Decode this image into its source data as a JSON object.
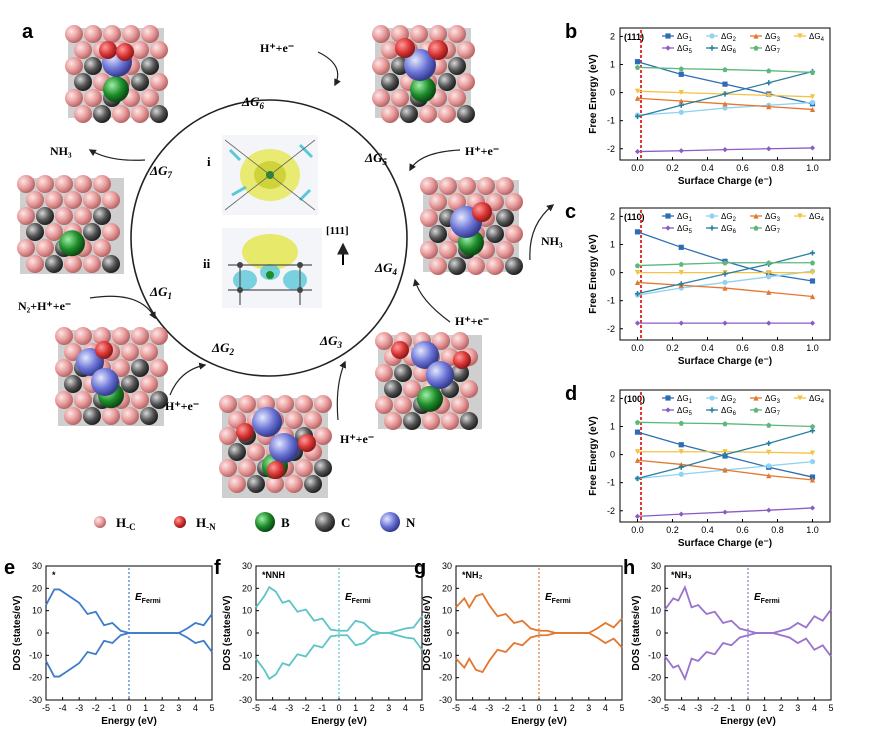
{
  "panel_a": {
    "letter": "a",
    "steps": {
      "g1": "ΔG",
      "g1_sub": "1",
      "g2": "ΔG",
      "g2_sub": "2",
      "g3": "ΔG",
      "g3_sub": "3",
      "g4": "ΔG",
      "g4_sub": "4",
      "g5": "ΔG",
      "g5_sub": "5",
      "g6": "ΔG",
      "g6_sub": "6",
      "g7": "ΔG",
      "g7_sub": "7"
    },
    "reagents": {
      "top": "H⁺+e⁻",
      "right_upper": "H⁺+e⁻",
      "right_lower": "H⁺+e⁻",
      "bottom_right": "H⁺+e⁻",
      "bottom": "H⁺+e⁻",
      "left": "N₂+H⁺+e⁻"
    },
    "products": {
      "nh3_left": "NH₃",
      "nh3_right": "NH₃"
    },
    "inset": {
      "label_i": "i",
      "label_ii": "ii",
      "direction": "[111]"
    },
    "legend": [
      {
        "label": "H",
        "sub": "-C",
        "color": "#e89a9a"
      },
      {
        "label": "H",
        "sub": "-N",
        "color": "#d93535"
      },
      {
        "label": "B",
        "sub": "",
        "color": "#1e8c2a"
      },
      {
        "label": "C",
        "sub": "",
        "color": "#555555"
      },
      {
        "label": "N",
        "sub": "",
        "color": "#6b74d6"
      }
    ]
  },
  "chart_data": [
    {
      "panel": "b",
      "type": "line",
      "facet": "(111)",
      "xlabel": "Surface Charge (e⁻)",
      "ylabel": "Free Energy (eV)",
      "x": [
        0,
        0.25,
        0.5,
        0.75,
        1.0
      ],
      "xlim": [
        -0.1,
        1.1
      ],
      "ylim": [
        -2.4,
        2.3
      ],
      "xticks": [
        "0.0",
        "0.2",
        "0.4",
        "0.6",
        "0.8",
        "1.0"
      ],
      "yticks": [
        "-2",
        "-1",
        "0",
        "1",
        "2"
      ],
      "series": [
        {
          "name": "ΔG",
          "sub": "1",
          "color": "#2e6db4",
          "marker": "square",
          "values": [
            1.1,
            0.65,
            0.3,
            -0.05,
            -0.4
          ]
        },
        {
          "name": "ΔG",
          "sub": "2",
          "color": "#8fd3f0",
          "marker": "circle",
          "values": [
            -0.8,
            -0.7,
            -0.55,
            -0.45,
            -0.35
          ]
        },
        {
          "name": "ΔG",
          "sub": "3",
          "color": "#e3772e",
          "marker": "triangle",
          "values": [
            -0.2,
            -0.3,
            -0.4,
            -0.5,
            -0.6
          ]
        },
        {
          "name": "ΔG",
          "sub": "4",
          "color": "#f5c242",
          "marker": "tri-down",
          "values": [
            0.05,
            0.0,
            -0.05,
            -0.1,
            -0.15
          ]
        },
        {
          "name": "ΔG",
          "sub": "5",
          "color": "#8a5cc4",
          "marker": "diamond",
          "values": [
            -2.1,
            -2.07,
            -2.03,
            -2.0,
            -1.97
          ]
        },
        {
          "name": "ΔG",
          "sub": "6",
          "color": "#2a7fa0",
          "marker": "star",
          "values": [
            -0.85,
            -0.45,
            -0.05,
            0.35,
            0.75
          ]
        },
        {
          "name": "ΔG",
          "sub": "7",
          "color": "#5cb87a",
          "marker": "pentagon",
          "values": [
            0.9,
            0.85,
            0.82,
            0.78,
            0.72
          ]
        }
      ]
    },
    {
      "panel": "c",
      "type": "line",
      "facet": "(110)",
      "xlabel": "Surface Charge (e⁻)",
      "ylabel": "Free Energy (eV)",
      "x": [
        0,
        0.25,
        0.5,
        0.75,
        1.0
      ],
      "xlim": [
        -0.1,
        1.1
      ],
      "ylim": [
        -2.4,
        2.3
      ],
      "xticks": [
        "0.0",
        "0.2",
        "0.4",
        "0.6",
        "0.8",
        "1.0"
      ],
      "yticks": [
        "-2",
        "-1",
        "0",
        "1",
        "2"
      ],
      "series": [
        {
          "name": "ΔG",
          "sub": "1",
          "color": "#2e6db4",
          "marker": "square",
          "values": [
            1.45,
            0.9,
            0.4,
            -0.05,
            -0.3
          ]
        },
        {
          "name": "ΔG",
          "sub": "2",
          "color": "#8fd3f0",
          "marker": "circle",
          "values": [
            -0.8,
            -0.55,
            -0.35,
            -0.15,
            0.05
          ]
        },
        {
          "name": "ΔG",
          "sub": "3",
          "color": "#e3772e",
          "marker": "triangle",
          "values": [
            -0.35,
            -0.45,
            -0.55,
            -0.7,
            -0.85
          ]
        },
        {
          "name": "ΔG",
          "sub": "4",
          "color": "#f5c242",
          "marker": "tri-down",
          "values": [
            0.0,
            0.0,
            0.0,
            0.0,
            0.0
          ]
        },
        {
          "name": "ΔG",
          "sub": "5",
          "color": "#8a5cc4",
          "marker": "diamond",
          "values": [
            -1.8,
            -1.8,
            -1.8,
            -1.8,
            -1.8
          ]
        },
        {
          "name": "ΔG",
          "sub": "6",
          "color": "#2a7fa0",
          "marker": "star",
          "values": [
            -0.75,
            -0.4,
            -0.05,
            0.3,
            0.7
          ]
        },
        {
          "name": "ΔG",
          "sub": "7",
          "color": "#5cb87a",
          "marker": "pentagon",
          "values": [
            0.25,
            0.3,
            0.35,
            0.35,
            0.35
          ]
        }
      ]
    },
    {
      "panel": "d",
      "type": "line",
      "facet": "(100)",
      "xlabel": "Surface Charge (e⁻)",
      "ylabel": "Free Energy (eV)",
      "x": [
        0,
        0.25,
        0.5,
        0.75,
        1.0
      ],
      "xlim": [
        -0.1,
        1.1
      ],
      "ylim": [
        -2.4,
        2.3
      ],
      "xticks": [
        "0.0",
        "0.2",
        "0.4",
        "0.6",
        "0.8",
        "1.0"
      ],
      "yticks": [
        "-2",
        "-1",
        "0",
        "1",
        "2"
      ],
      "series": [
        {
          "name": "ΔG",
          "sub": "1",
          "color": "#2e6db4",
          "marker": "square",
          "values": [
            0.8,
            0.35,
            -0.05,
            -0.45,
            -0.8
          ]
        },
        {
          "name": "ΔG",
          "sub": "2",
          "color": "#8fd3f0",
          "marker": "circle",
          "values": [
            -0.85,
            -0.7,
            -0.55,
            -0.4,
            -0.25
          ]
        },
        {
          "name": "ΔG",
          "sub": "3",
          "color": "#e3772e",
          "marker": "triangle",
          "values": [
            -0.2,
            -0.35,
            -0.55,
            -0.75,
            -0.9
          ]
        },
        {
          "name": "ΔG",
          "sub": "4",
          "color": "#f5c242",
          "marker": "tri-down",
          "values": [
            0.1,
            0.1,
            0.1,
            0.08,
            0.05
          ]
        },
        {
          "name": "ΔG",
          "sub": "5",
          "color": "#8a5cc4",
          "marker": "diamond",
          "values": [
            -2.2,
            -2.12,
            -2.05,
            -1.98,
            -1.9
          ]
        },
        {
          "name": "ΔG",
          "sub": "6",
          "color": "#2a7fa0",
          "marker": "star",
          "values": [
            -0.85,
            -0.45,
            0.0,
            0.4,
            0.85
          ]
        },
        {
          "name": "ΔG",
          "sub": "7",
          "color": "#5cb87a",
          "marker": "pentagon",
          "values": [
            1.15,
            1.12,
            1.1,
            1.05,
            1.0
          ]
        }
      ]
    },
    {
      "panel": "e",
      "type": "line",
      "label": "*",
      "color": "#3d7cc9",
      "xlabel": "Energy (eV)",
      "ylabel": "DOS (states/eV)",
      "xlim": [
        -5,
        5
      ],
      "ylim": [
        -30,
        30
      ],
      "xticks": [
        "-5",
        "-4",
        "-3",
        "-2",
        "-1",
        "0",
        "1",
        "2",
        "3",
        "4",
        "5"
      ],
      "yticks": [
        "-30",
        "-20",
        "-10",
        "0",
        "10",
        "20",
        "30"
      ],
      "fermi": "E",
      "fermi_sub": "Fermi",
      "x": [
        -5,
        -4.5,
        -4.2,
        -3.8,
        -3.4,
        -3,
        -2.5,
        -2,
        -1.5,
        -1,
        -0.5,
        0,
        0.5,
        1,
        1.5,
        2,
        2.5,
        3,
        3.5,
        4,
        4.5,
        5
      ],
      "values": [
        14,
        18,
        21,
        16,
        17,
        12,
        10,
        8,
        5,
        3,
        1,
        0,
        0,
        0,
        0,
        0,
        0,
        0,
        2,
        3,
        5,
        7
      ]
    },
    {
      "panel": "f",
      "type": "line",
      "label": "*NNH",
      "color": "#5cc4c8",
      "xlabel": "Energy (eV)",
      "ylabel": "DOS (states/eV)",
      "xlim": [
        -5,
        5
      ],
      "ylim": [
        -30,
        30
      ],
      "xticks": [
        "-5",
        "-4",
        "-3",
        "-2",
        "-1",
        "0",
        "1",
        "2",
        "3",
        "4",
        "5"
      ],
      "yticks": [
        "-30",
        "-20",
        "-10",
        "0",
        "10",
        "20",
        "30"
      ],
      "fermi": "E",
      "fermi_sub": "Fermi",
      "x": [
        -5,
        -4.5,
        -4.2,
        -3.8,
        -3.4,
        -3,
        -2.5,
        -2,
        -1.5,
        -1,
        -0.5,
        0,
        0.5,
        1,
        1.5,
        2,
        2.5,
        3,
        3.5,
        4,
        4.5,
        5
      ],
      "values": [
        13,
        15,
        22,
        17,
        15,
        13,
        11,
        9,
        7,
        5,
        3,
        1,
        1,
        4,
        6,
        1,
        0,
        0,
        1,
        2,
        4,
        6
      ]
    },
    {
      "panel": "g",
      "type": "line",
      "label": "*NH₂",
      "color": "#e3772e",
      "xlabel": "Energy (eV)",
      "ylabel": "DOS (states/eV)",
      "xlim": [
        -5,
        5
      ],
      "ylim": [
        -30,
        30
      ],
      "xticks": [
        "-5",
        "-4",
        "-3",
        "-2",
        "-1",
        "0",
        "1",
        "2",
        "3",
        "4",
        "5"
      ],
      "yticks": [
        "-30",
        "-20",
        "-10",
        "0",
        "10",
        "20",
        "30"
      ],
      "fermi": "E",
      "fermi_sub": "Fermi",
      "x": [
        -5,
        -4.5,
        -4.2,
        -3.8,
        -3.4,
        -3,
        -2.5,
        -2,
        -1.5,
        -1,
        -0.5,
        0,
        0.5,
        1,
        1.5,
        2,
        2.5,
        3,
        3.5,
        4,
        4.5,
        5
      ],
      "values": [
        13,
        14,
        13,
        15,
        19,
        11,
        9,
        7,
        6,
        4,
        2,
        1,
        1,
        0,
        0,
        0,
        0,
        0,
        2,
        3,
        4,
        5
      ]
    },
    {
      "panel": "h",
      "type": "line",
      "label": "*NH₃",
      "color": "#9a72cf",
      "xlabel": "Energy (eV)",
      "ylabel": "DOS (states/eV)",
      "xlim": [
        -5,
        5
      ],
      "ylim": [
        -30,
        30
      ],
      "xticks": [
        "-5",
        "-4",
        "-3",
        "-2",
        "-1",
        "0",
        "1",
        "2",
        "3",
        "4",
        "5"
      ],
      "yticks": [
        "-30",
        "-20",
        "-10",
        "0",
        "10",
        "20",
        "30"
      ],
      "fermi": "E",
      "fermi_sub": "Fermi",
      "x": [
        -5,
        -4.5,
        -4.2,
        -3.8,
        -3.4,
        -3,
        -2.5,
        -2,
        -1.5,
        -1,
        -0.5,
        0,
        0.5,
        1,
        1.5,
        2,
        2.5,
        3,
        3.5,
        4,
        4.5,
        5
      ],
      "values": [
        12,
        14,
        16,
        19,
        13,
        11,
        10,
        8,
        6,
        4,
        2,
        1,
        0,
        0,
        0,
        1,
        2,
        3,
        4,
        6,
        7,
        9
      ]
    }
  ]
}
